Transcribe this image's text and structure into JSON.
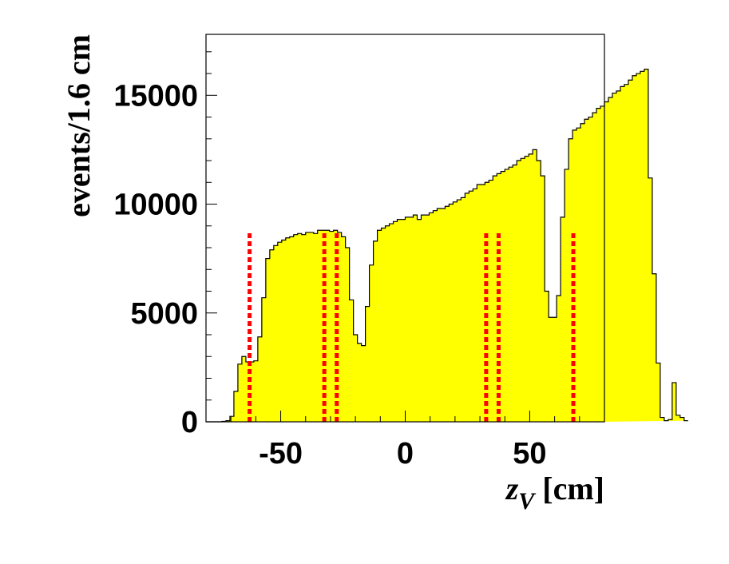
{
  "chart_data": {
    "type": "histogram",
    "x_title": "z",
    "x_title_sub": "V",
    "x_title_unit": " [cm]",
    "ylabel": "events/1.6 cm",
    "xlim": [
      -80,
      80
    ],
    "ylim": [
      0,
      17800
    ],
    "bin_width": 1.6,
    "x_start": -80,
    "x_ticks": [
      {
        "value": -50,
        "label": "-50"
      },
      {
        "value": 0,
        "label": "0"
      },
      {
        "value": 50,
        "label": "50"
      }
    ],
    "y_ticks": [
      {
        "value": 0,
        "label": "0"
      },
      {
        "value": 5000,
        "label": "5000"
      },
      {
        "value": 10000,
        "label": "10000"
      },
      {
        "value": 15000,
        "label": "15000"
      }
    ],
    "values": [
      0,
      0,
      0,
      0,
      20,
      50,
      250,
      1400,
      2650,
      3000,
      2750,
      2750,
      2800,
      3900,
      5700,
      7500,
      7900,
      8100,
      8250,
      8350,
      8450,
      8500,
      8600,
      8650,
      8600,
      8700,
      8700,
      8650,
      8800,
      8800,
      8800,
      8750,
      8800,
      8700,
      8500,
      8000,
      5600,
      4000,
      3600,
      3500,
      5300,
      7200,
      8300,
      8800,
      8900,
      9000,
      9100,
      9200,
      9300,
      9300,
      9400,
      9400,
      9500,
      9300,
      9500,
      9500,
      9600,
      9700,
      9800,
      9800,
      9900,
      10000,
      10100,
      10200,
      10300,
      10500,
      10600,
      10700,
      10900,
      10900,
      11000,
      11100,
      11300,
      11400,
      11500,
      11600,
      11700,
      11800,
      12000,
      12100,
      12200,
      12300,
      12500,
      12000,
      11300,
      6000,
      4800,
      4800,
      5800,
      9400,
      11600,
      13000,
      13400,
      13500,
      13700,
      13900,
      14000,
      14200,
      14400,
      14500,
      14700,
      14900,
      15100,
      15200,
      15400,
      15500,
      15700,
      15900,
      16000,
      16100,
      16200,
      11200,
      6800,
      2700,
      200,
      50,
      100,
      1800,
      300,
      200,
      50
    ],
    "fill_color": "#ffff00",
    "line_color": "#000000",
    "cut_lines": {
      "color": "#ff0000",
      "x": [
        -62.5,
        -32.5,
        -27.5,
        32.5,
        37.5,
        67.5
      ],
      "height": 8800
    }
  }
}
